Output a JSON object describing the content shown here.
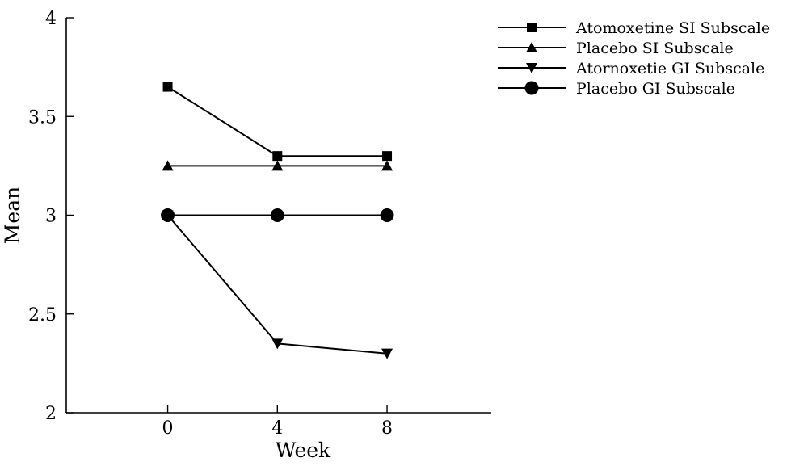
{
  "chart_data": {
    "type": "line",
    "title": "",
    "xlabel": "Week",
    "ylabel": "Mean",
    "x": [
      0,
      4,
      8
    ],
    "xlim": [
      -3.7,
      11.8
    ],
    "ylim": [
      2,
      4
    ],
    "xticks": [
      "0",
      "4",
      "8"
    ],
    "yticks": [
      "2",
      "2.5",
      "3",
      "3.5",
      "4"
    ],
    "grid": false,
    "legend_position": "top-right",
    "series": [
      {
        "name": "Atomoxetine SI Subscale",
        "marker": "square",
        "values": [
          3.65,
          3.3,
          3.3
        ]
      },
      {
        "name": "Placebo SI Subscale",
        "marker": "triangle-up",
        "values": [
          3.25,
          3.25,
          3.25
        ]
      },
      {
        "name": "Atornoxetie GI Subscale",
        "marker": "triangle-down",
        "values": [
          3.0,
          2.35,
          2.3
        ]
      },
      {
        "name": "Placebo GI Subscale",
        "marker": "circle",
        "values": [
          3.0,
          3.0,
          3.0
        ]
      }
    ],
    "colors": {
      "line": "#000000",
      "marker": "#000000"
    }
  }
}
